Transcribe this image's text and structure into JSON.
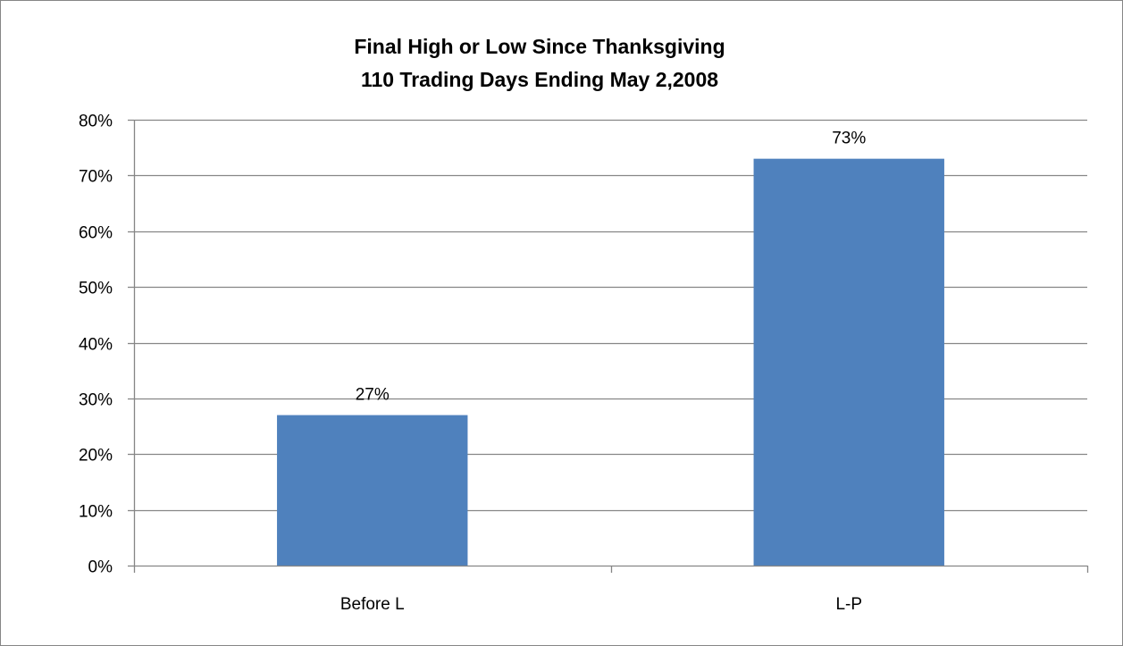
{
  "chart_data": {
    "type": "bar",
    "title": [
      "Final High or Low Since Thanksgiving",
      "110 Trading Days Ending May 2,2008"
    ],
    "categories": [
      "Before L",
      "L-P"
    ],
    "values": [
      0.27,
      0.73
    ],
    "data_labels": [
      "27%",
      "73%"
    ],
    "xlabel": "",
    "ylabel": "",
    "ylim": [
      0,
      0.8
    ],
    "y_ticks": [
      0,
      0.1,
      0.2,
      0.3,
      0.4,
      0.5,
      0.6,
      0.7,
      0.8
    ],
    "y_tick_labels": [
      "0%",
      "10%",
      "20%",
      "30%",
      "40%",
      "50%",
      "60%",
      "70%",
      "80%"
    ],
    "grid": true,
    "legend": "none",
    "bar_color": "#4f81bd",
    "grid_color": "#868686"
  }
}
